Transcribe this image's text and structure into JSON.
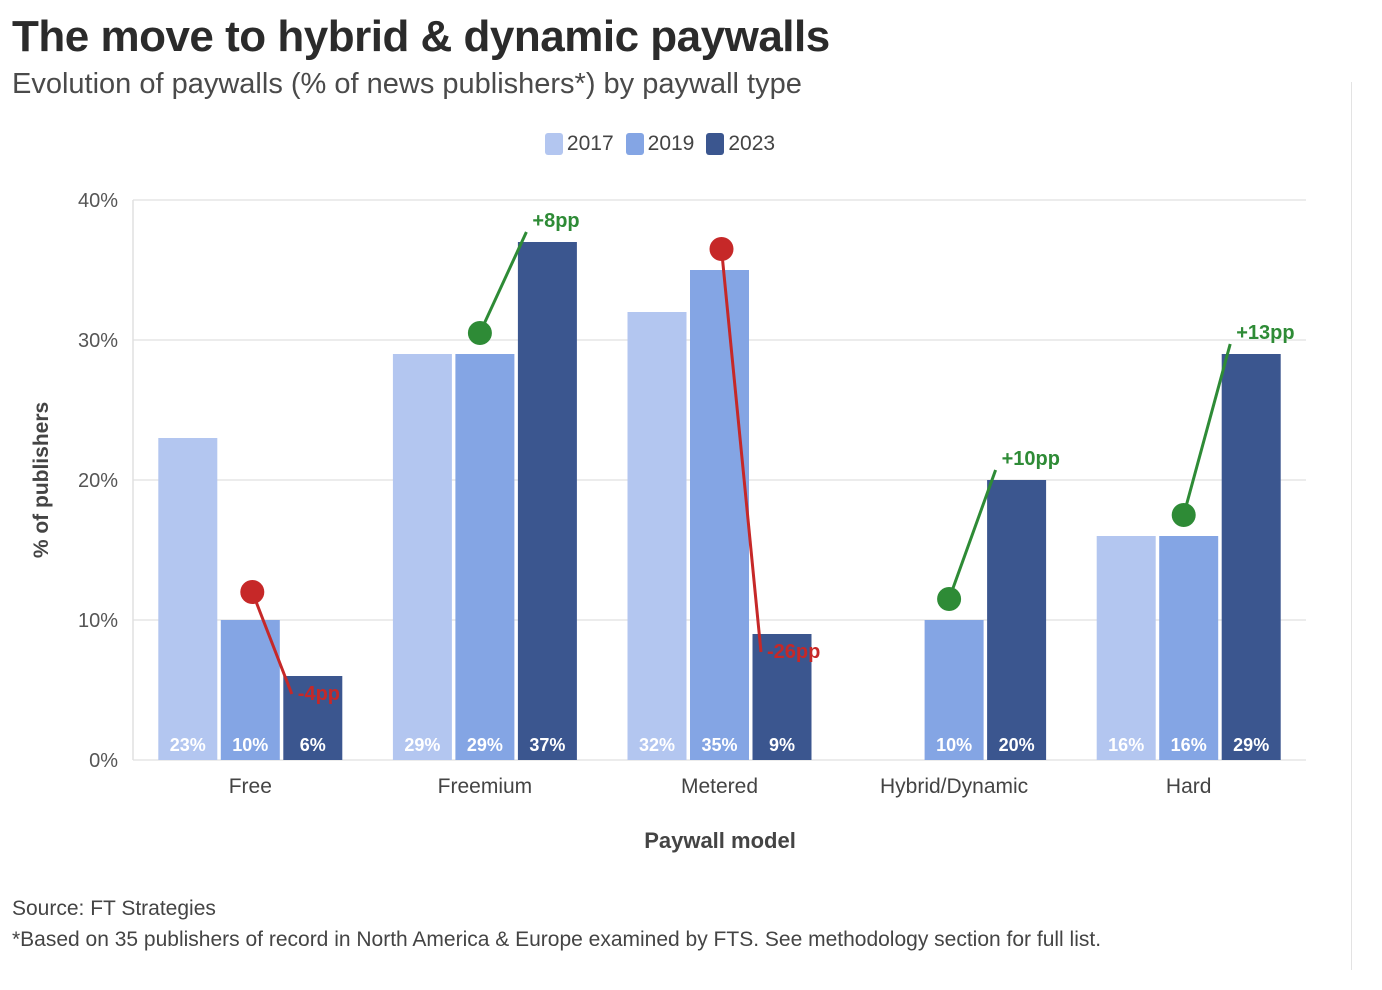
{
  "title": "The move to hybrid & dynamic paywalls",
  "subtitle": "Evolution of paywalls (% of news publishers*) by paywall type",
  "footer": {
    "source": "Source: FT Strategies",
    "note": "*Based on 35 publishers of record in North America & Europe examined by FTS. See methodology section for full list."
  },
  "colors": {
    "2017": "#b3c6f0",
    "2019": "#84a5e4",
    "2023": "#3b568f",
    "increase": "#2e8b36",
    "decrease": "#c62828",
    "grid": "#e6e6e6"
  },
  "chart_data": {
    "type": "bar",
    "xlabel": "Paywall model",
    "ylabel": "% of publishers",
    "ylim": [
      0,
      40
    ],
    "yticks": [
      0,
      10,
      20,
      30,
      40
    ],
    "ytick_labels": [
      "0%",
      "10%",
      "20%",
      "30%",
      "40%"
    ],
    "grid": true,
    "legend_position": "top-center",
    "categories": [
      "Free",
      "Freemium",
      "Metered",
      "Hybrid/Dynamic",
      "Hard"
    ],
    "series": [
      {
        "name": "2017",
        "values": [
          23,
          29,
          32,
          0,
          16
        ],
        "labels": [
          "23%",
          "29%",
          "32%",
          "",
          "16%"
        ]
      },
      {
        "name": "2019",
        "values": [
          10,
          29,
          35,
          10,
          16
        ],
        "labels": [
          "10%",
          "29%",
          "35%",
          "10%",
          "16%"
        ]
      },
      {
        "name": "2023",
        "values": [
          6,
          37,
          9,
          20,
          29
        ],
        "labels": [
          "6%",
          "37%",
          "9%",
          "20%",
          "29%"
        ]
      }
    ],
    "annotations": [
      {
        "category": "Free",
        "text": "-4pp",
        "direction": "decrease",
        "from": 12,
        "to": 6
      },
      {
        "category": "Freemium",
        "text": "+8pp",
        "direction": "increase",
        "from": 30.5,
        "to": 37
      },
      {
        "category": "Metered",
        "text": "-26pp",
        "direction": "decrease",
        "from": 36.5,
        "to": 9
      },
      {
        "category": "Hybrid/Dynamic",
        "text": "+10pp",
        "direction": "increase",
        "from": 11.5,
        "to": 20
      },
      {
        "category": "Hard",
        "text": "+13pp",
        "direction": "increase",
        "from": 17.5,
        "to": 29
      }
    ]
  }
}
